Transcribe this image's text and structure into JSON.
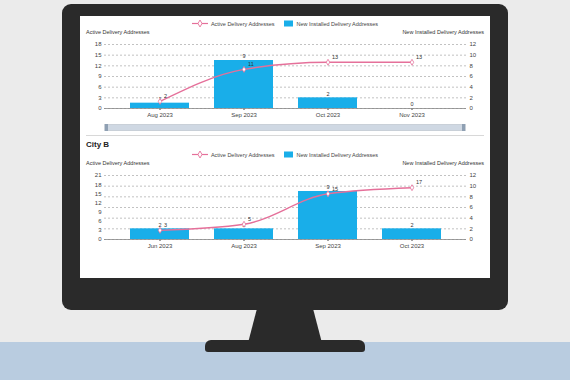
{
  "chart_data": [
    {
      "type": "combo",
      "categories": [
        "Aug 2023",
        "Sep 2023",
        "Oct 2023",
        "Nov 2023"
      ],
      "series": [
        {
          "name": "Active Delivery Addresses",
          "type": "line",
          "color": "#e5709a",
          "marker": "diamond",
          "values": [
            2,
            11,
            13,
            13
          ]
        },
        {
          "name": "New Installed Delivery Addresses",
          "type": "bar",
          "color": "#19aee9",
          "axis": "y2",
          "values": [
            1,
            9,
            2,
            0
          ]
        }
      ],
      "ylabel": "Active Delivery Addresses",
      "y2label": "New Installed Delivery Addresses",
      "ylim": [
        0,
        18
      ],
      "yticks": [
        0,
        3,
        6,
        9,
        12,
        15,
        18
      ],
      "y2lim": [
        0,
        12
      ],
      "y2ticks": [
        0,
        2,
        4,
        6,
        8,
        10,
        12
      ],
      "grid": true,
      "data_labels": true,
      "legend": "top"
    },
    {
      "type": "combo",
      "title": "City B",
      "categories": [
        "Jun 2023",
        "Aug 2023",
        "Sep 2023",
        "Oct 2023"
      ],
      "series": [
        {
          "name": "Active Delivery Addresses",
          "type": "line",
          "color": "#e5709a",
          "marker": "diamond",
          "values": [
            3,
            5,
            15,
            17
          ]
        },
        {
          "name": "New Installed Delivery Addresses",
          "type": "bar",
          "color": "#19aee9",
          "axis": "y2",
          "values": [
            2,
            2,
            9,
            2
          ]
        }
      ],
      "ylabel": "Active Delivery Addresses",
      "y2label": "New Installed Delivery Addresses",
      "ylim": [
        0,
        21
      ],
      "yticks": [
        0,
        3,
        6,
        9,
        12,
        15,
        18,
        21
      ],
      "y2lim": [
        0,
        12
      ],
      "y2ticks": [
        0,
        2,
        4,
        6,
        8,
        10,
        12
      ],
      "grid": true,
      "data_labels": true,
      "legend": "top"
    }
  ]
}
